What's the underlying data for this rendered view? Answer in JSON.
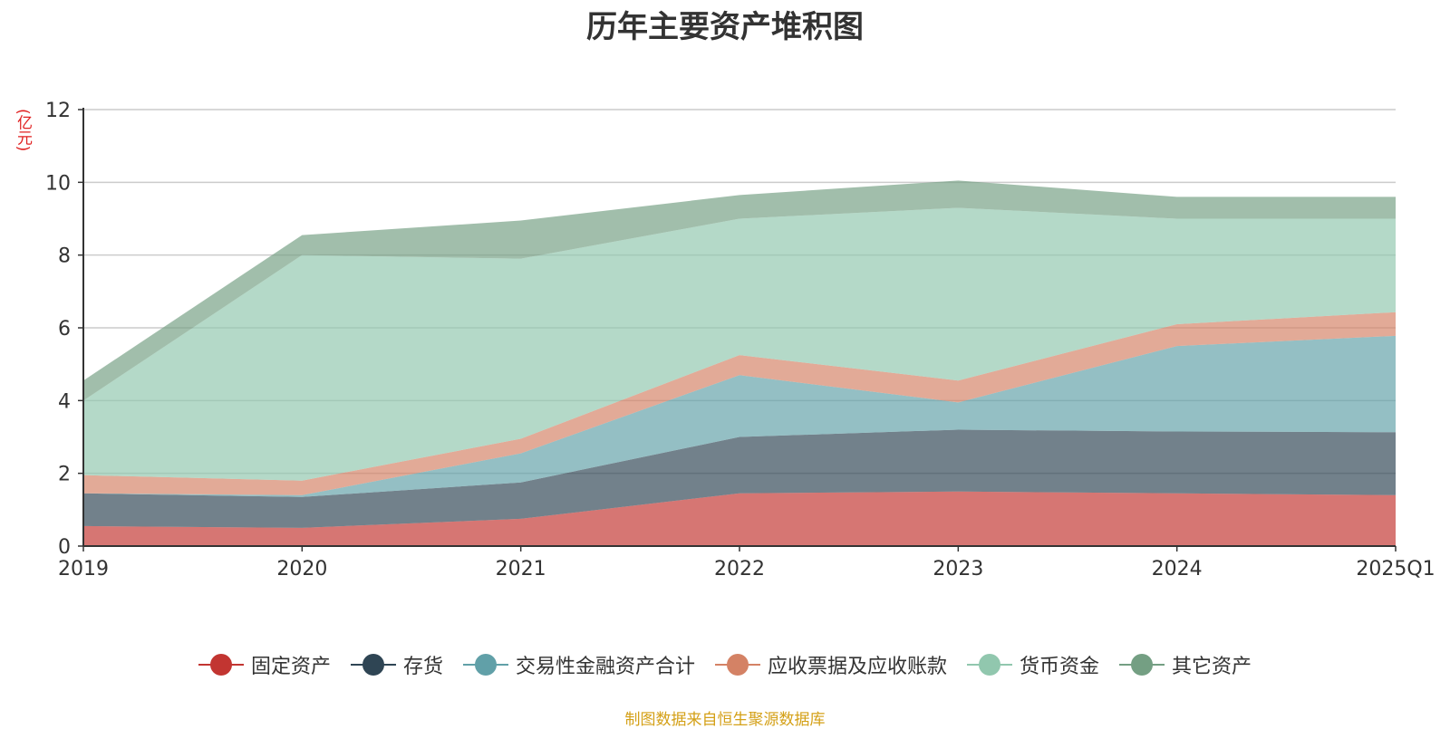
{
  "chart_data": {
    "type": "area",
    "title": "历年主要资产堆积图",
    "ylabel": "亿元",
    "unit_label": "(亿元)",
    "categories": [
      "2019",
      "2020",
      "2021",
      "2022",
      "2023",
      "2024",
      "2025Q1"
    ],
    "ylim": [
      0,
      12
    ],
    "yticks": [
      0,
      2,
      4,
      6,
      8,
      10,
      12
    ],
    "stacked": true,
    "grid": true,
    "legend_position": "bottom",
    "series": [
      {
        "name": "固定资产",
        "color": "#c23531",
        "values": [
          0.55,
          0.5,
          0.75,
          1.45,
          1.5,
          1.45,
          1.4
        ]
      },
      {
        "name": "存货",
        "color": "#2f4554",
        "values": [
          0.9,
          0.85,
          1.0,
          1.55,
          1.7,
          1.7,
          1.73
        ]
      },
      {
        "name": "交易性金融资产合计",
        "color": "#61a0a8",
        "values": [
          0.0,
          0.05,
          0.8,
          1.7,
          0.75,
          2.35,
          2.65
        ]
      },
      {
        "name": "应收票据及应收账款",
        "color": "#d48265",
        "values": [
          0.5,
          0.4,
          0.4,
          0.55,
          0.6,
          0.6,
          0.65
        ]
      },
      {
        "name": "货币资金",
        "color": "#91c7ae",
        "values": [
          2.05,
          6.2,
          4.95,
          3.75,
          4.75,
          2.9,
          2.57
        ]
      },
      {
        "name": "其它资产",
        "color": "#749f83",
        "values": [
          0.55,
          0.55,
          1.05,
          0.65,
          0.75,
          0.6,
          0.6
        ]
      }
    ]
  },
  "footer": {
    "source": "制图数据来自恒生聚源数据库"
  }
}
